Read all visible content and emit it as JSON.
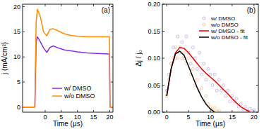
{
  "chart_data": [
    {
      "type": "line",
      "title": "(a)",
      "x_label": "Time (μs)",
      "y_label": "j (mA/cm²)",
      "x": [
        -7,
        -3.2,
        -2.8,
        -2.4,
        -1.5,
        -0.5,
        0.5,
        1.5,
        2.5,
        4,
        6,
        8,
        10,
        13,
        16,
        19.9,
        20.1,
        21
      ],
      "series": [
        {
          "name": "w/ DMSO",
          "color": "#8a2be2",
          "values": [
            0,
            0,
            13,
            14,
            13,
            11.8,
            10.9,
            11.9,
            12.2,
            11.8,
            11.4,
            11.2,
            11,
            10.8,
            10.7,
            10.6,
            0,
            0
          ]
        },
        {
          "name": "w/o DMSO",
          "color": "#ff8c00",
          "values": [
            0,
            0,
            17,
            19.5,
            18,
            15,
            14.2,
            15.5,
            15.6,
            15.2,
            14.6,
            14.3,
            14.1,
            14,
            14,
            14,
            0,
            0
          ]
        }
      ],
      "xlim": [
        -7,
        21
      ],
      "xticks": [
        0,
        5,
        10,
        15,
        20
      ],
      "ylim": [
        -1,
        20.5
      ],
      "yticks": [
        0,
        5,
        10,
        15,
        20
      ],
      "legend": "bottom"
    },
    {
      "type": "scatter",
      "title": "(b)",
      "x_label": "Time (μs)",
      "y_label": "Δj / j₀",
      "series": [
        {
          "name": "w/ DMSO",
          "color": "#c4a6f0",
          "type": "scatter",
          "marker": "circle",
          "x": [
            0,
            0.5,
            1,
            1.5,
            2,
            2.5,
            3,
            3.5,
            4,
            4.5,
            5,
            5.5,
            6,
            6.5,
            7,
            7.5,
            8,
            8.5,
            9,
            9.5,
            10,
            10.5,
            11,
            11.5,
            12,
            12.5,
            13,
            13.5,
            14,
            14.5,
            15,
            15.5,
            16,
            16.5,
            17,
            17.5,
            18,
            18.5,
            19,
            19.5,
            20
          ],
          "values": [
            0.04,
            0.07,
            0.09,
            0.12,
            0.1,
            0.14,
            0.11,
            0.13,
            0.1,
            0.14,
            0.11,
            0.09,
            0.12,
            0.1,
            0.08,
            0.11,
            0.07,
            0.09,
            0.06,
            0.08,
            0.07,
            0.05,
            0.07,
            0.04,
            0.06,
            0.04,
            0.05,
            0.03,
            0.04,
            0.02,
            0.03,
            0.02,
            0.025,
            0.01,
            0.015,
            0.005,
            0.01,
            0.003,
            0.006,
            0.002,
            0.004
          ]
        },
        {
          "name": "w/o DMSO",
          "color": "#f5c48a",
          "type": "scatter",
          "marker": "circle",
          "x": [
            0,
            0.5,
            1,
            1.5,
            2,
            2.5,
            3,
            3.5,
            4,
            4.5,
            5,
            5.5,
            6,
            6.5,
            7,
            7.5,
            8,
            8.5,
            9,
            9.5,
            10,
            10.5,
            11,
            11.5,
            12
          ],
          "values": [
            0.03,
            0.06,
            0.09,
            0.1,
            0.12,
            0.1,
            0.12,
            0.1,
            0.11,
            0.09,
            0.1,
            0.07,
            0.08,
            0.05,
            0.06,
            0.04,
            0.045,
            0.02,
            0.03,
            0.015,
            0.01,
            0.005,
            0.008,
            0.002,
            0.003
          ]
        },
        {
          "name": "w/ DMSO - fit",
          "color": "#e00000",
          "type": "line",
          "x": [
            0,
            1,
            2,
            3,
            4,
            5,
            6,
            7,
            8,
            9,
            10,
            11,
            12,
            13,
            14,
            15,
            16,
            17,
            18,
            19
          ],
          "values": [
            0.03,
            0.08,
            0.11,
            0.12,
            0.118,
            0.11,
            0.1,
            0.09,
            0.08,
            0.072,
            0.065,
            0.058,
            0.05,
            0.042,
            0.034,
            0.025,
            0.017,
            0.01,
            0.005,
            0.001
          ]
        },
        {
          "name": "w/o DMSO - fit",
          "color": "#000000",
          "type": "line",
          "x": [
            0,
            1,
            2,
            3,
            4,
            5,
            6,
            7,
            8,
            9,
            10,
            11
          ],
          "values": [
            0.03,
            0.08,
            0.108,
            0.113,
            0.105,
            0.085,
            0.065,
            0.045,
            0.028,
            0.015,
            0.006,
            0
          ]
        }
      ],
      "xlim": [
        -1,
        21
      ],
      "xticks": [
        0,
        5,
        10,
        15,
        20
      ],
      "ylim": [
        0,
        0.2
      ],
      "yticks": [
        {
          "value": 0,
          "label": "0.00"
        },
        {
          "value": 0.05,
          "label": "0.05"
        },
        {
          "value": 0.1,
          "label": "0.10"
        },
        {
          "value": 0.15,
          "label": "0.15"
        },
        {
          "value": 0.2,
          "label": "0.20"
        }
      ],
      "legend": "upper right"
    }
  ]
}
